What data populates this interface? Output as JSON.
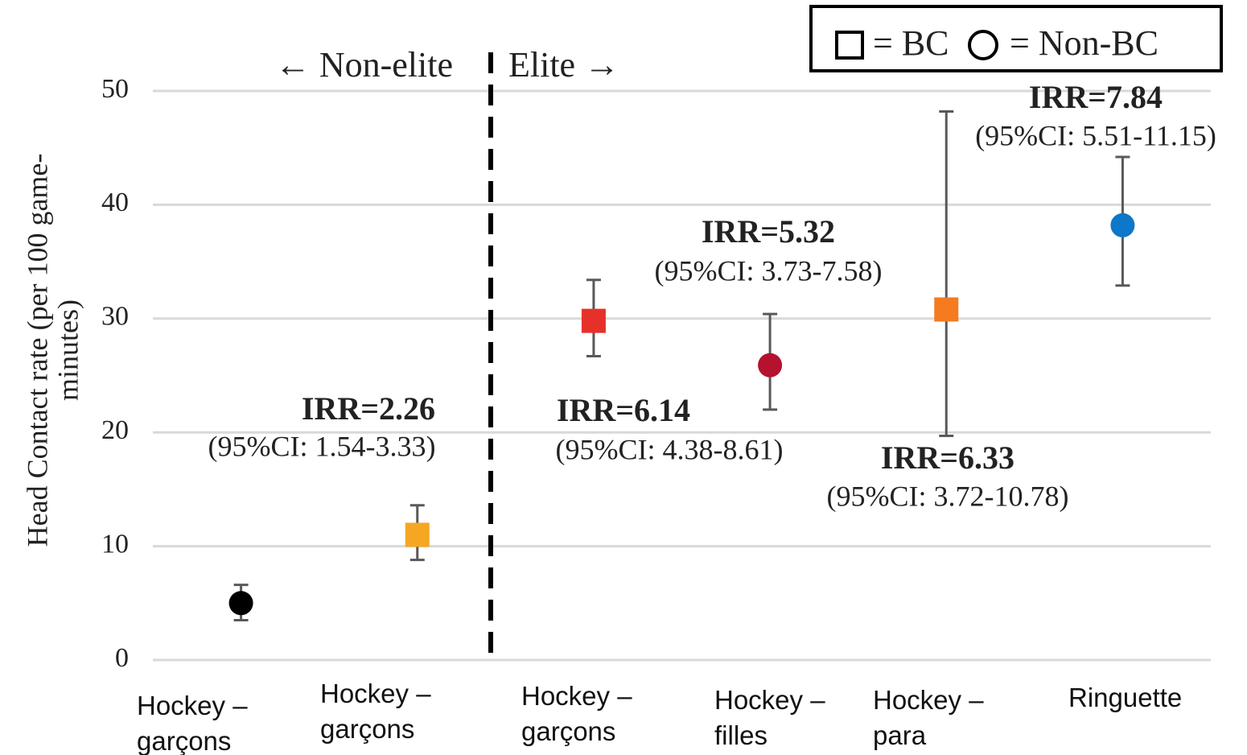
{
  "chart_data": {
    "type": "errorbar",
    "header_left": "← Non-elite",
    "header_right": "Elite →",
    "legend": {
      "square": "= BC",
      "circle": "= Non-BC"
    },
    "ylabel": [
      "Head Contact rate (per 100 game-",
      "minutes)"
    ],
    "categories": [
      "Hockey – garçons",
      "Hockey – garçons",
      "Hockey – garçons",
      "Hockey – filles",
      "Hockey – para",
      "Ringuette"
    ],
    "values": [
      5.0,
      11.0,
      29.8,
      25.9,
      30.8,
      38.2
    ],
    "lower": [
      3.5,
      8.8,
      26.7,
      22.0,
      19.7,
      32.9
    ],
    "upper": [
      6.6,
      13.6,
      33.4,
      30.4,
      48.2,
      44.2
    ],
    "markers": [
      "circle",
      "square",
      "square",
      "circle",
      "square",
      "circle"
    ],
    "colors": [
      "#000000",
      "#f5a623",
      "#e8302a",
      "#b5122e",
      "#f57a20",
      "#0d77c9"
    ],
    "ylim": [
      0,
      50
    ],
    "yticks": [
      0,
      10,
      20,
      30,
      40,
      50
    ],
    "grid": true,
    "annotations": [
      {
        "title": "IRR=2.26",
        "ci": "(95%CI: 1.54-3.33)"
      },
      {
        "title": "IRR=6.14",
        "ci": "(95%CI: 4.38-8.61)"
      },
      {
        "title": "IRR=5.32",
        "ci": "(95%CI: 3.73-7.58)"
      },
      {
        "title": "IRR=6.33",
        "ci": "(95%CI: 3.72-10.78)"
      },
      {
        "title": "IRR=7.84",
        "ci": "(95%CI: 5.51-11.15)"
      }
    ]
  }
}
